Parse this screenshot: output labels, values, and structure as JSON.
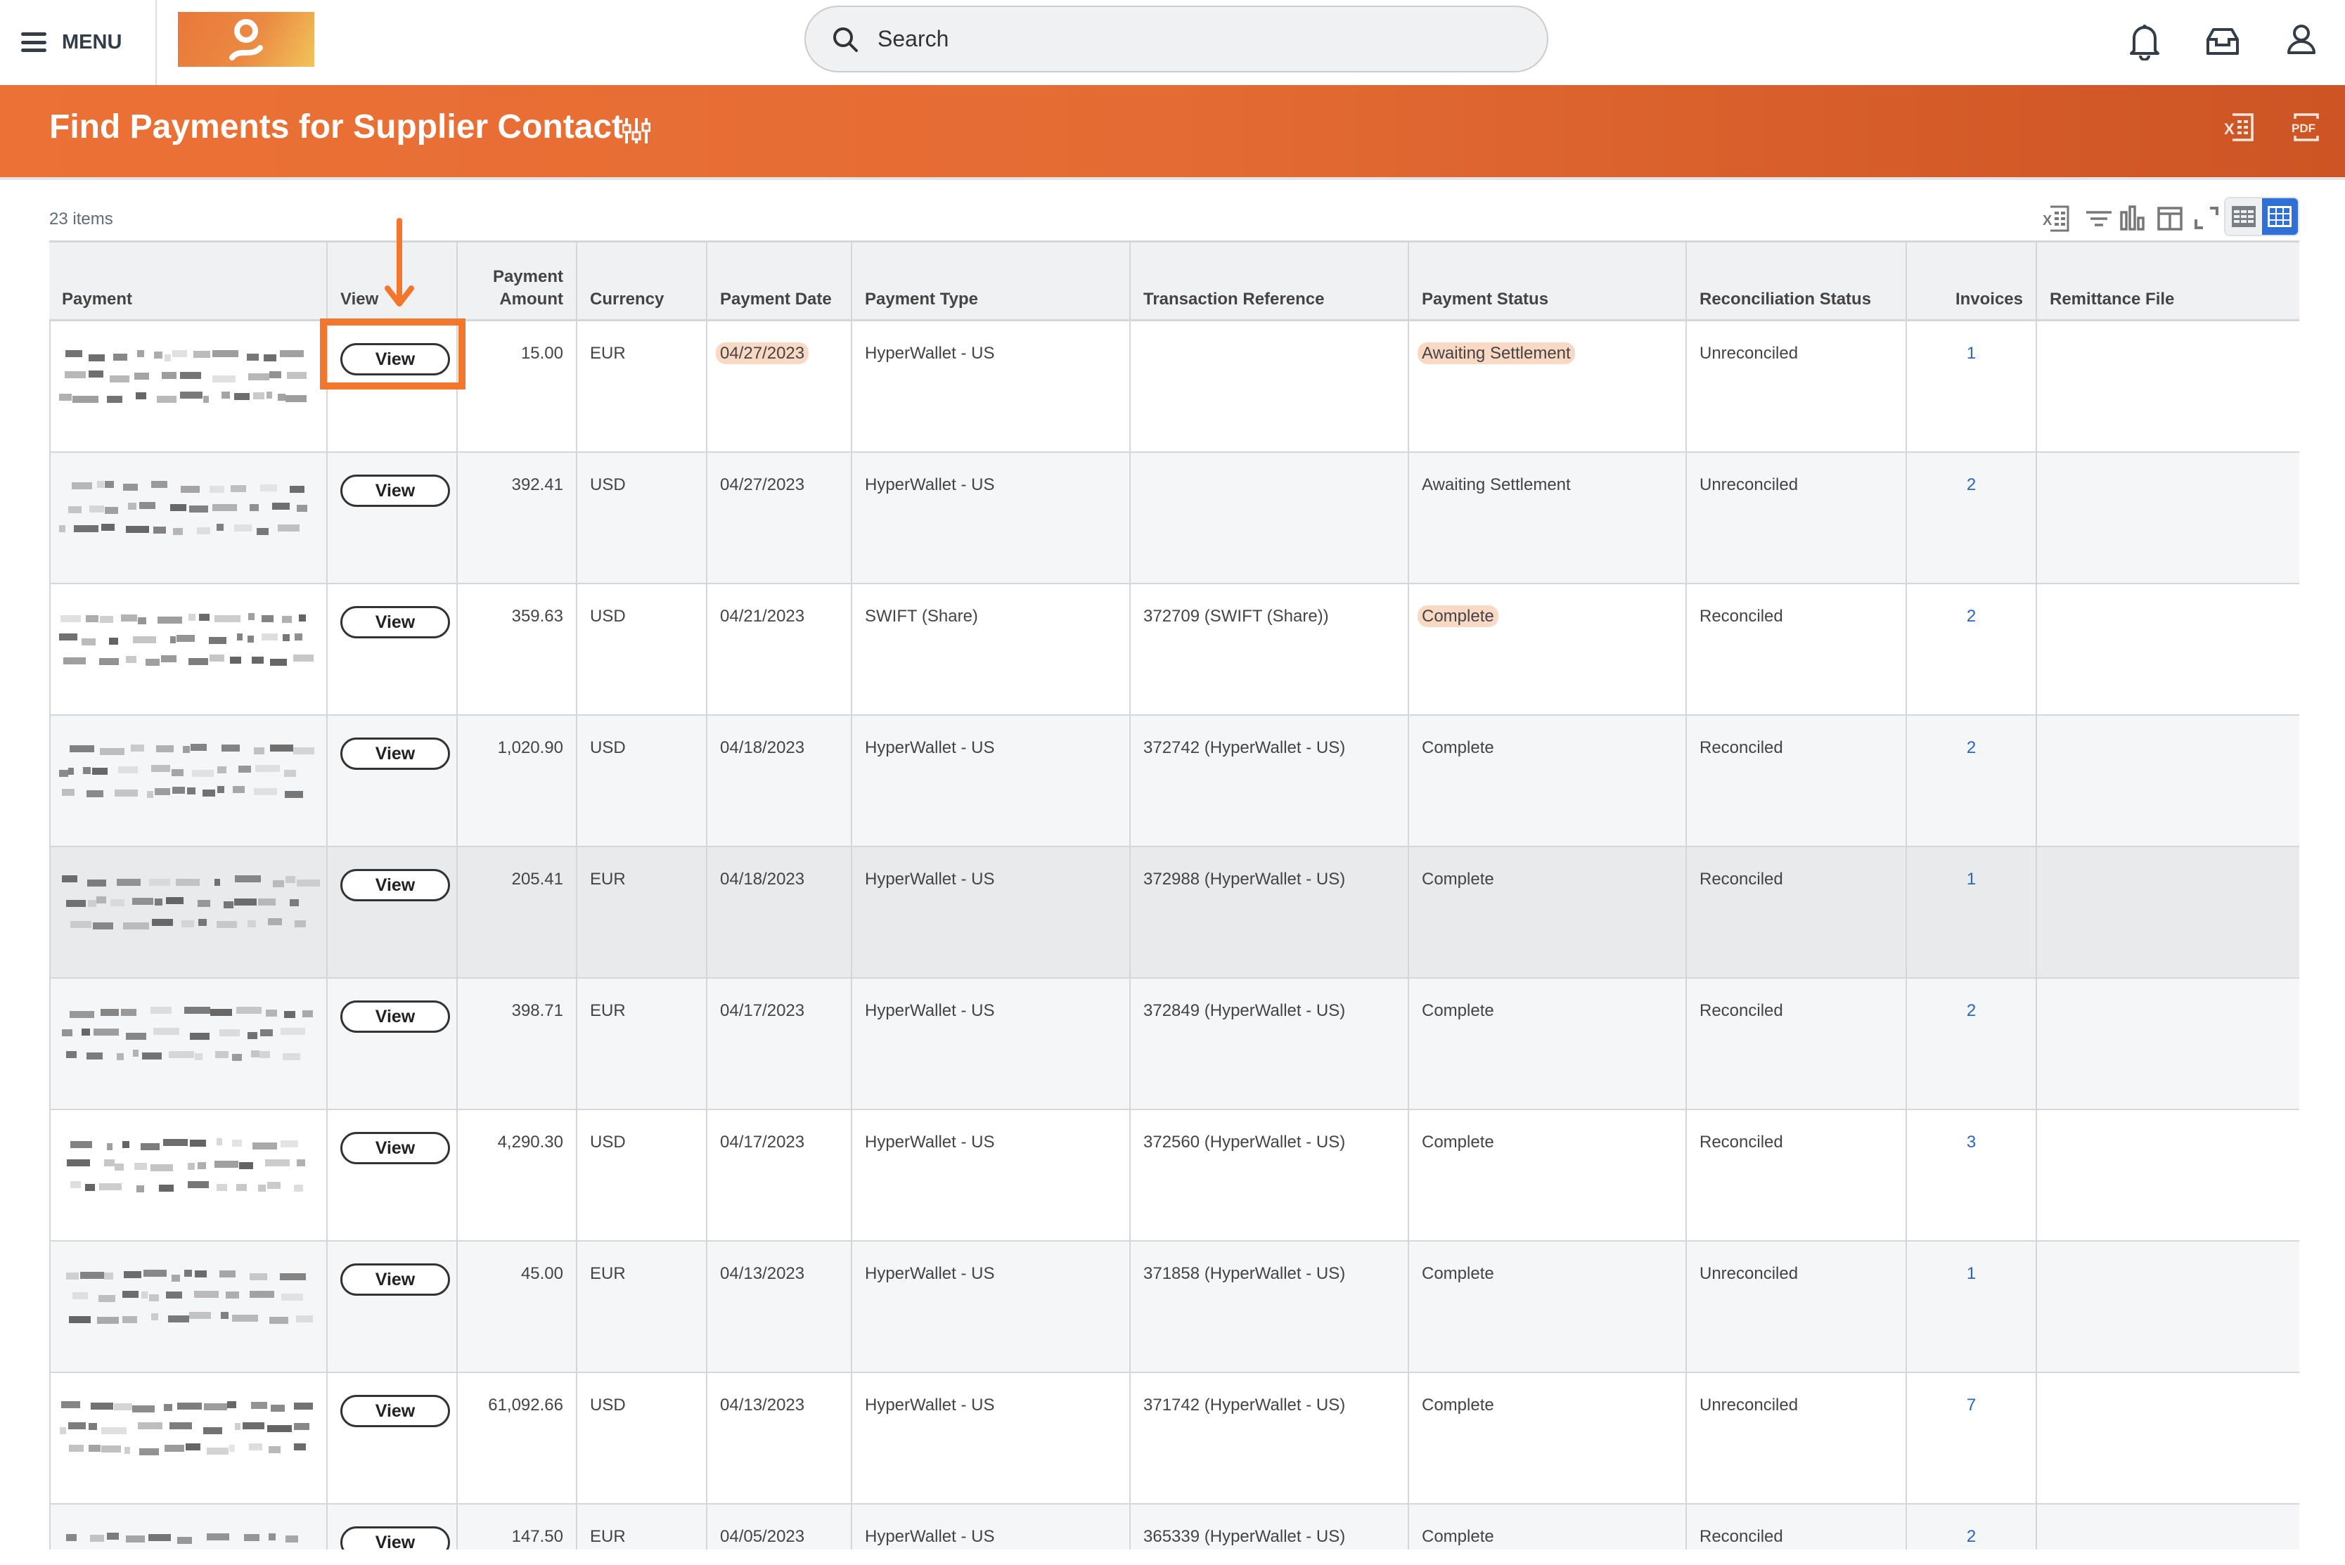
{
  "topbar": {
    "menu_label": "MENU",
    "search_placeholder": "Search",
    "icons": [
      "bell-icon",
      "inbox-icon",
      "user-icon"
    ]
  },
  "banner": {
    "title": "Find Payments for Supplier Contact",
    "export_excel": "excel-export-icon",
    "export_pdf": "PDF"
  },
  "colors": {
    "brand": "#e96c34",
    "accent_blue": "#2f6fd8",
    "highlight": "#f2762b",
    "marker": "#f9d8c4",
    "link": "#2a64c4"
  },
  "table": {
    "item_count": "23 items",
    "columns": [
      "Payment",
      "View",
      "Payment Amount",
      "Currency",
      "Payment Date",
      "Payment Type",
      "Transaction Reference",
      "Payment Status",
      "Reconciliation Status",
      "Invoices",
      "Remittance File"
    ],
    "view_label": "View",
    "rows": [
      {
        "amount": "15.00",
        "currency": "EUR",
        "date": "04/27/2023",
        "type": "HyperWallet - US",
        "ref": "",
        "status": "Awaiting Settlement",
        "recon": "Unreconciled",
        "invoices": "1",
        "remit": ""
      },
      {
        "amount": "392.41",
        "currency": "USD",
        "date": "04/27/2023",
        "type": "HyperWallet - US",
        "ref": "",
        "status": "Awaiting Settlement",
        "recon": "Unreconciled",
        "invoices": "2",
        "remit": ""
      },
      {
        "amount": "359.63",
        "currency": "USD",
        "date": "04/21/2023",
        "type": "SWIFT (Share)",
        "ref": "372709 (SWIFT (Share))",
        "status": "Complete",
        "recon": "Reconciled",
        "invoices": "2",
        "remit": ""
      },
      {
        "amount": "1,020.90",
        "currency": "USD",
        "date": "04/18/2023",
        "type": "HyperWallet - US",
        "ref": "372742 (HyperWallet - US)",
        "status": "Complete",
        "recon": "Reconciled",
        "invoices": "2",
        "remit": ""
      },
      {
        "amount": "205.41",
        "currency": "EUR",
        "date": "04/18/2023",
        "type": "HyperWallet - US",
        "ref": "372988 (HyperWallet - US)",
        "status": "Complete",
        "recon": "Reconciled",
        "invoices": "1",
        "remit": ""
      },
      {
        "amount": "398.71",
        "currency": "EUR",
        "date": "04/17/2023",
        "type": "HyperWallet - US",
        "ref": "372849 (HyperWallet - US)",
        "status": "Complete",
        "recon": "Reconciled",
        "invoices": "2",
        "remit": ""
      },
      {
        "amount": "4,290.30",
        "currency": "USD",
        "date": "04/17/2023",
        "type": "HyperWallet - US",
        "ref": "372560 (HyperWallet - US)",
        "status": "Complete",
        "recon": "Reconciled",
        "invoices": "3",
        "remit": ""
      },
      {
        "amount": "45.00",
        "currency": "EUR",
        "date": "04/13/2023",
        "type": "HyperWallet - US",
        "ref": "371858 (HyperWallet - US)",
        "status": "Complete",
        "recon": "Unreconciled",
        "invoices": "1",
        "remit": ""
      },
      {
        "amount": "61,092.66",
        "currency": "USD",
        "date": "04/13/2023",
        "type": "HyperWallet - US",
        "ref": "371742 (HyperWallet - US)",
        "status": "Complete",
        "recon": "Unreconciled",
        "invoices": "7",
        "remit": ""
      },
      {
        "amount": "147.50",
        "currency": "EUR",
        "date": "04/05/2023",
        "type": "HyperWallet - US",
        "ref": "365339 (HyperWallet - US)",
        "status": "Complete",
        "recon": "Reconciled",
        "invoices": "2",
        "remit": ""
      }
    ]
  }
}
